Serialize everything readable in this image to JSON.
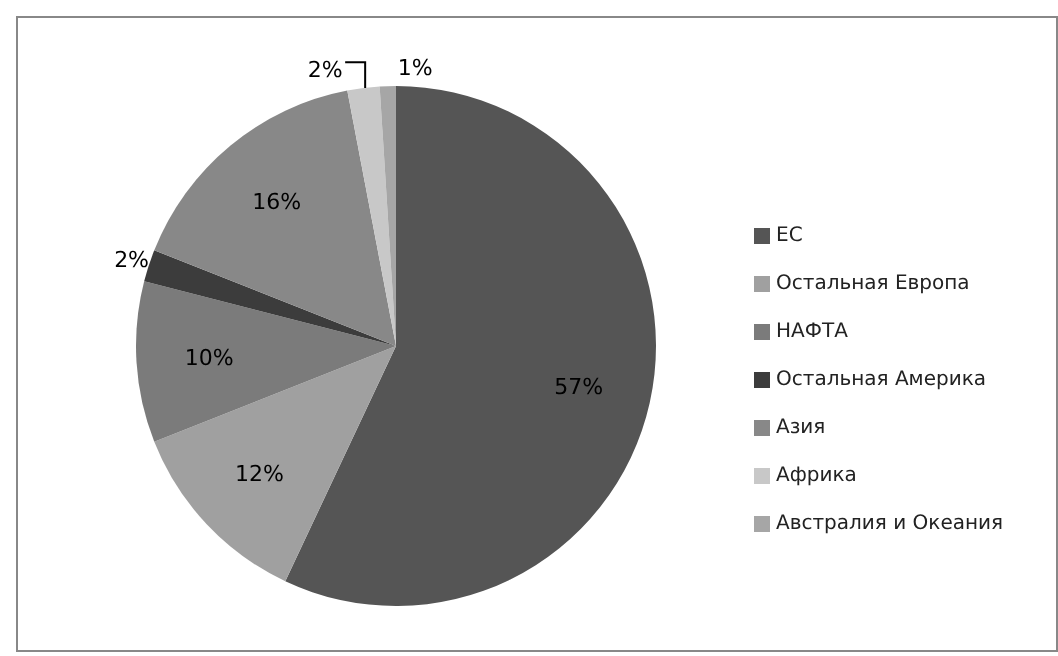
{
  "chart_data": {
    "type": "pie",
    "categories": [
      "ЕС",
      "Остальная Европа",
      "НАФТА",
      "Остальная Америка",
      "Азия",
      "Африка",
      "Австралия и Океания"
    ],
    "values": [
      57,
      12,
      10,
      2,
      16,
      2,
      1
    ],
    "colors": [
      "#555555",
      "#a0a0a0",
      "#7b7b7b",
      "#3c3c3c",
      "#888888",
      "#c8c8c8",
      "#a6a6a6"
    ],
    "value_labels": [
      "57%",
      "12%",
      "10%",
      "2%",
      "16%",
      "2%",
      "1%"
    ],
    "legend": "right"
  }
}
